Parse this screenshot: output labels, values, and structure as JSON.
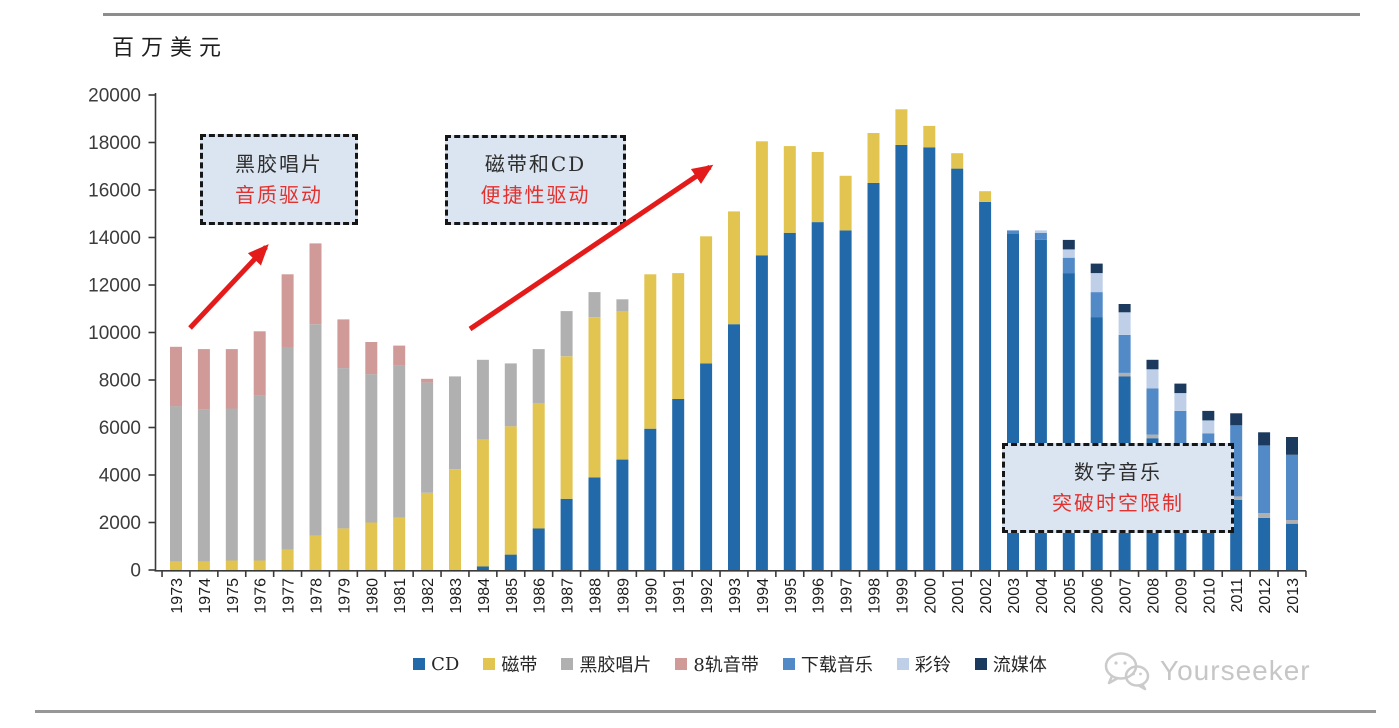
{
  "page": {
    "unit_label": "百万美元",
    "watermark": "Yourseeker"
  },
  "annotations": [
    {
      "line1": "黑胶唱片",
      "line2": "音质驱动"
    },
    {
      "line1": "磁带和CD",
      "line2": "便捷性驱动"
    },
    {
      "line1": "数字音乐",
      "line2": "突破时空限制"
    }
  ],
  "chart_data": {
    "type": "bar",
    "stacked": true,
    "title": "",
    "ylabel": "百万美元",
    "xlabel": "",
    "grid": false,
    "legend_position": "bottom",
    "ylim": [
      0,
      20000
    ],
    "ytick_interval": 2000,
    "yticks": [
      0,
      2000,
      4000,
      6000,
      8000,
      10000,
      12000,
      14000,
      16000,
      18000,
      20000
    ],
    "categories": [
      "1973",
      "1974",
      "1975",
      "1976",
      "1977",
      "1978",
      "1979",
      "1980",
      "1981",
      "1982",
      "1983",
      "1984",
      "1985",
      "1986",
      "1987",
      "1988",
      "1989",
      "1990",
      "1991",
      "1992",
      "1993",
      "1994",
      "1995",
      "1996",
      "1997",
      "1998",
      "1999",
      "2000",
      "2001",
      "2002",
      "2003",
      "2004",
      "2005",
      "2006",
      "2007",
      "2008",
      "2009",
      "2010",
      "2011",
      "2012",
      "2013"
    ],
    "series": [
      {
        "name": "CD",
        "color": "#2169A8",
        "values": [
          0,
          0,
          0,
          0,
          0,
          0,
          0,
          0,
          0,
          0,
          0,
          150,
          650,
          1750,
          3000,
          3900,
          4650,
          5950,
          7200,
          8700,
          10350,
          13250,
          14200,
          14650,
          14300,
          16300,
          17900,
          17800,
          16900,
          15500,
          14150,
          13900,
          12500,
          10650,
          8150,
          5550,
          5200,
          4300,
          2950,
          2200,
          1950
        ]
      },
      {
        "name": "磁带",
        "color": "#E2C450",
        "values": [
          350,
          350,
          400,
          400,
          850,
          1450,
          1750,
          2000,
          2200,
          3250,
          4250,
          5350,
          5400,
          5250,
          6000,
          6750,
          6250,
          6500,
          5300,
          5350,
          4750,
          4800,
          3650,
          2950,
          2300,
          2100,
          1500,
          900,
          650,
          450,
          0,
          0,
          0,
          0,
          0,
          0,
          0,
          0,
          0,
          0,
          0
        ]
      },
      {
        "name": "黑胶唱片",
        "color": "#B0B0B0",
        "values": [
          6550,
          6400,
          6400,
          6950,
          8500,
          8900,
          6750,
          6250,
          6400,
          4650,
          3900,
          3350,
          2650,
          2300,
          1900,
          1050,
          500,
          0,
          0,
          0,
          0,
          0,
          0,
          0,
          0,
          0,
          0,
          0,
          0,
          0,
          0,
          0,
          0,
          0,
          150,
          150,
          100,
          100,
          150,
          200,
          150
        ]
      },
      {
        "name": "8轨音带",
        "color": "#CF9A98",
        "values": [
          2500,
          2550,
          2500,
          2700,
          3100,
          3400,
          2050,
          1350,
          850,
          150,
          0,
          0,
          0,
          0,
          0,
          0,
          0,
          0,
          0,
          0,
          0,
          0,
          0,
          0,
          0,
          0,
          0,
          0,
          0,
          0,
          0,
          0,
          0,
          0,
          0,
          0,
          0,
          0,
          0,
          0,
          0
        ]
      },
      {
        "name": "下载音乐",
        "color": "#5289C7",
        "values": [
          0,
          0,
          0,
          0,
          0,
          0,
          0,
          0,
          0,
          0,
          0,
          0,
          0,
          0,
          0,
          0,
          0,
          0,
          0,
          0,
          0,
          0,
          0,
          0,
          0,
          0,
          0,
          0,
          0,
          0,
          150,
          300,
          650,
          1050,
          1600,
          1950,
          1400,
          1350,
          3000,
          2850,
          2750
        ]
      },
      {
        "name": "彩铃",
        "color": "#BFCFE8",
        "values": [
          0,
          0,
          0,
          0,
          0,
          0,
          0,
          0,
          0,
          0,
          0,
          0,
          0,
          0,
          0,
          0,
          0,
          0,
          0,
          0,
          0,
          0,
          0,
          0,
          0,
          0,
          0,
          0,
          0,
          0,
          0,
          100,
          350,
          800,
          950,
          800,
          750,
          550,
          0,
          0,
          0
        ]
      },
      {
        "name": "流媒体",
        "color": "#1C3A5E",
        "values": [
          0,
          0,
          0,
          0,
          0,
          0,
          0,
          0,
          0,
          0,
          0,
          0,
          0,
          0,
          0,
          0,
          0,
          0,
          0,
          0,
          0,
          0,
          0,
          0,
          0,
          0,
          0,
          0,
          0,
          0,
          0,
          0,
          400,
          400,
          350,
          400,
          400,
          400,
          500,
          550,
          750
        ]
      }
    ]
  }
}
